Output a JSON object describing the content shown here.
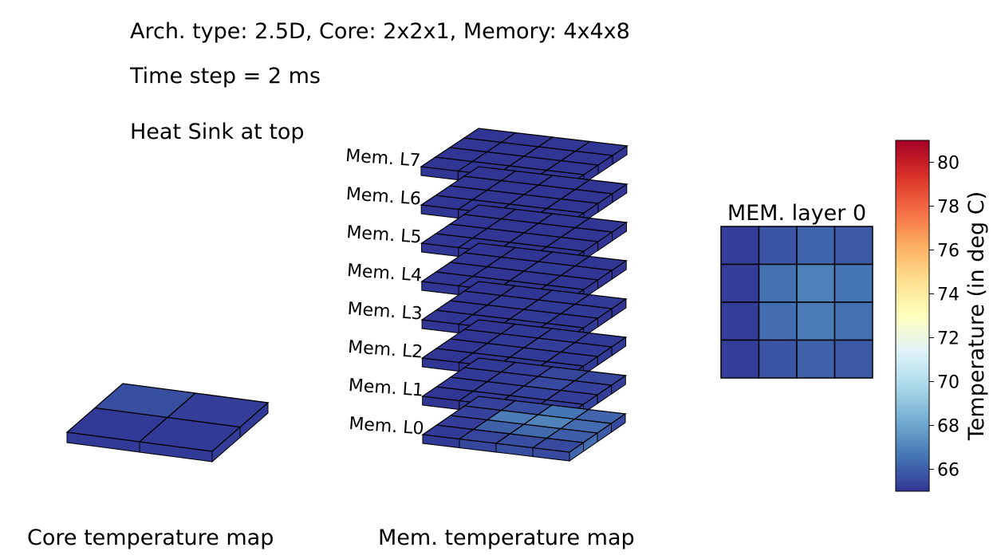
{
  "header": {
    "arch_line": "Arch. type: 2.5D, Core: 2x2x1, Memory: 4x4x8",
    "time_line": "Time step = 2 ms",
    "sink_line": "Heat Sink at top"
  },
  "captions": {
    "core_map": "Core temperature map",
    "mem_map": "Mem. temperature map"
  },
  "colors": {
    "edge": "#000000",
    "side_core": "#2d3591",
    "side_mem": "#2f3a94"
  },
  "core_grid": {
    "rows": 2,
    "cols": 2,
    "temps": [
      [
        65.6,
        65.2
      ],
      [
        65.1,
        65.1
      ]
    ]
  },
  "mem_stack": {
    "rows": 4,
    "cols": 4,
    "layers": [
      {
        "label": "Mem. L0",
        "temps": [
          [
            65.3,
            65.6,
            66.6,
            66.2
          ],
          [
            65.3,
            66.8,
            67.0,
            66.4
          ],
          [
            65.2,
            66.1,
            66.3,
            66.0
          ],
          [
            65.1,
            65.4,
            65.6,
            65.5
          ]
        ]
      },
      {
        "label": "Mem. L1",
        "temps": [
          [
            65.1,
            65.2,
            65.4,
            65.4
          ],
          [
            65.1,
            65.2,
            65.5,
            65.3
          ],
          [
            65.1,
            65.2,
            65.3,
            65.2
          ],
          [
            65.0,
            65.1,
            65.1,
            65.2
          ]
        ]
      },
      {
        "label": "Mem. L2",
        "temps": [
          [
            65.0,
            65.1,
            65.1,
            65.1
          ],
          [
            65.0,
            65.1,
            65.2,
            65.1
          ],
          [
            65.0,
            65.1,
            65.1,
            65.1
          ],
          [
            65.0,
            65.0,
            65.1,
            65.1
          ]
        ]
      },
      {
        "label": "Mem. L3",
        "temps": [
          [
            65.0,
            65.0,
            65.1,
            65.1
          ],
          [
            65.0,
            65.1,
            65.1,
            65.1
          ],
          [
            65.0,
            65.0,
            65.1,
            65.0
          ],
          [
            65.0,
            65.0,
            65.0,
            65.0
          ]
        ]
      },
      {
        "label": "Mem. L4",
        "temps": [
          [
            65.0,
            65.0,
            65.0,
            65.0
          ],
          [
            65.0,
            65.0,
            65.1,
            65.0
          ],
          [
            65.0,
            65.0,
            65.0,
            65.0
          ],
          [
            65.0,
            65.0,
            65.0,
            65.0
          ]
        ]
      },
      {
        "label": "Mem. L5",
        "temps": [
          [
            65.0,
            65.0,
            65.0,
            65.0
          ],
          [
            65.0,
            65.0,
            65.0,
            65.0
          ],
          [
            65.0,
            65.0,
            65.0,
            65.0
          ],
          [
            65.0,
            65.0,
            65.0,
            65.0
          ]
        ]
      },
      {
        "label": "Mem. L6",
        "temps": [
          [
            65.0,
            65.0,
            65.0,
            65.0
          ],
          [
            65.0,
            65.0,
            65.0,
            65.0
          ],
          [
            65.0,
            65.0,
            65.0,
            65.0
          ],
          [
            65.0,
            65.0,
            65.0,
            65.0
          ]
        ]
      },
      {
        "label": "Mem. L7",
        "temps": [
          [
            65.0,
            65.0,
            65.0,
            65.0
          ],
          [
            65.0,
            65.0,
            65.0,
            65.0
          ],
          [
            65.0,
            65.0,
            65.0,
            65.0
          ],
          [
            65.0,
            65.0,
            65.0,
            65.0
          ]
        ]
      }
    ]
  },
  "mem_layer_view": {
    "title": "MEM. layer 0",
    "temps": [
      [
        65.2,
        65.8,
        66.2,
        65.9
      ],
      [
        65.2,
        66.5,
        66.9,
        66.6
      ],
      [
        65.2,
        66.4,
        66.8,
        66.5
      ],
      [
        65.2,
        65.8,
        66.1,
        65.9
      ]
    ]
  },
  "colorbar": {
    "label": "Temperature (in deg C)",
    "min": 65.0,
    "max": 81.0,
    "ticks": [
      "66",
      "68",
      "70",
      "72",
      "74",
      "76",
      "78",
      "80"
    ],
    "stops": [
      "#313695",
      "#4575b4",
      "#74add1",
      "#abd9e9",
      "#e0f3f8",
      "#ffffbf",
      "#fee090",
      "#fdae61",
      "#f46d43",
      "#d73027",
      "#a50026"
    ]
  }
}
